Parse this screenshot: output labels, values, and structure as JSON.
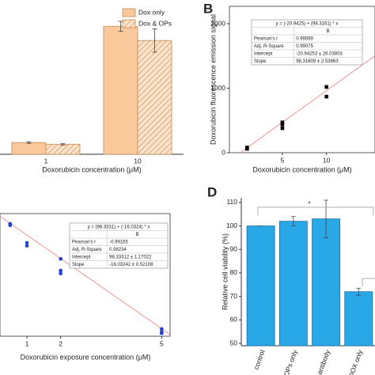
{
  "chart_data": [
    {
      "type": "bar",
      "x_label": "Doxorubicin concentration (μM)",
      "categories": [
        "1",
        "10"
      ],
      "series": [
        {
          "name": "Dox only",
          "color": "#f9c89b",
          "values": [
            14,
            153
          ],
          "errors": [
            1,
            6
          ]
        },
        {
          "name": "Dox & OPs",
          "color": "#f4b183",
          "pattern": "hatch",
          "values": [
            12,
            136
          ],
          "errors": [
            1,
            14
          ]
        }
      ],
      "ylim": [
        0,
        175
      ],
      "legend": "top-right"
    },
    {
      "type": "scatter",
      "panel_label": "B",
      "x_label": "Doxorubicin concentration (μM)",
      "y_label": "Doxorubicin fluorescence emission signal",
      "series": [
        {
          "color": "#000000",
          "x": [
            1,
            1,
            5,
            5,
            5,
            10,
            10
          ],
          "values": [
            60,
            80,
            380,
            440,
            470,
            870,
            1020
          ]
        }
      ],
      "xlim": [
        -1,
        15.5
      ],
      "xticks": [
        5,
        10
      ],
      "ylim": [
        0,
        2270
      ],
      "yticks": [
        0,
        1000,
        2000
      ],
      "fit": {
        "equation": "y = (-20.9425) + (98.3161) * x",
        "intercept": -20.9425,
        "slope": 98.3161,
        "color": "#f08c8c"
      },
      "stats": {
        "column": "B",
        "rows": [
          [
            "Pearson's r",
            "0.99569"
          ],
          [
            "Adj. R-Square",
            "0.99075"
          ],
          [
            "Intercept",
            "-20.94253 ± 26.03803"
          ],
          [
            "Slope",
            "98.31609 ± 2.53863"
          ]
        ]
      }
    },
    {
      "type": "scatter",
      "x_label": "Doxorubicin exposure concentration (μM)",
      "series": [
        {
          "color": "#1f3fcf",
          "x": [
            0.5,
            0.5,
            1,
            1,
            2,
            2,
            2,
            5,
            5,
            5
          ],
          "values": [
            90,
            89,
            77,
            75,
            66,
            58,
            56,
            18,
            16,
            15
          ]
        }
      ],
      "xlim": [
        0.2,
        5.25
      ],
      "xticks": [
        1,
        2,
        5
      ],
      "ylim": [
        13,
        97
      ],
      "fit": {
        "equation": "y = (98.3331) + (-16.0324) * x",
        "intercept": 98.3331,
        "slope": -16.0324,
        "color": "#f08c8c"
      },
      "stats": {
        "column": "B",
        "rows": [
          [
            "Pearson's r",
            "-0.99165"
          ],
          [
            "Adj. R-Square",
            "0.98234"
          ],
          [
            "Intercept",
            "98.33312 ± 1.17022"
          ],
          [
            "Slope",
            "-16.03242 ± 0.52108"
          ]
        ]
      }
    },
    {
      "type": "bar",
      "panel_label": "D",
      "y_label": "Relative cell viability (%)",
      "categories": [
        "control",
        "OPs only",
        "OPs-antibody",
        "DOX only"
      ],
      "values": [
        100,
        102,
        103,
        72
      ],
      "errors": [
        0,
        2,
        8,
        1.5
      ],
      "color": "#29a8e8",
      "ylim": [
        49,
        112
      ],
      "yticks": [
        50,
        60,
        70,
        80,
        90,
        100,
        110
      ],
      "annotation": "*"
    }
  ]
}
